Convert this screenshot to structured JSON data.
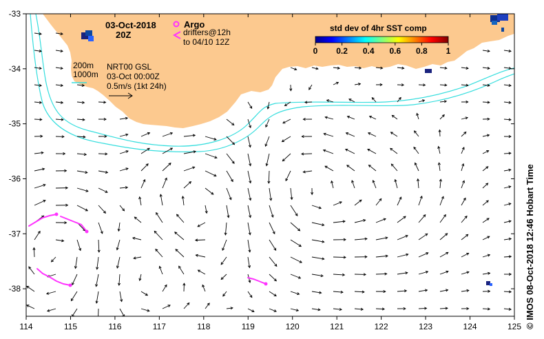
{
  "title": {
    "date": "03-Oct-2018",
    "hour": "20Z"
  },
  "legend": {
    "argo_label": "Argo",
    "drifters_line1": "drifters@12h",
    "drifters_line2": "to 04/10 12Z",
    "argo_color": "#ff33ff",
    "drifter_color": "#ff33ff"
  },
  "isobaths": {
    "label_200": "200m",
    "label_1000": "1000m",
    "color": "#33dddd"
  },
  "current_info": {
    "product": "NRT00 GSL",
    "time": "03-Oct 00:00Z",
    "scale": "0.5m/s (1kt 24h)"
  },
  "colorbar": {
    "title": "std dev of 4hr SST comp",
    "ticks": [
      "0",
      "0.2",
      "0.4",
      "0.6",
      "0.8",
      "1"
    ],
    "range": [
      0,
      1
    ]
  },
  "axes": {
    "x_ticks": [
      "114",
      "115",
      "116",
      "117",
      "118",
      "119",
      "120",
      "121",
      "122",
      "123",
      "124",
      "125"
    ],
    "y_ticks": [
      "-33",
      "-34",
      "-35",
      "-36",
      "-37",
      "-38"
    ],
    "lon_range": [
      114,
      125
    ],
    "lat_range": [
      -38.5,
      -33
    ]
  },
  "side_caption": "© IMOS 08-Oct-2018 12:46 Hobart Time",
  "colors": {
    "land": "#fcc98f",
    "ocean": "#ffffff",
    "arrow": "#000000"
  }
}
